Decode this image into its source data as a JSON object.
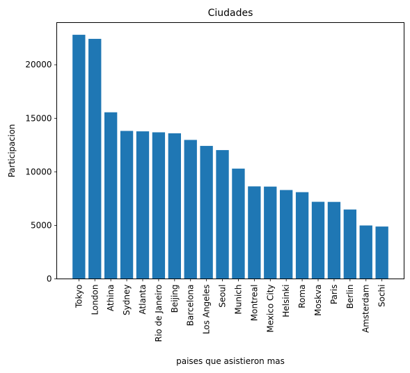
{
  "chart_data": {
    "type": "bar",
    "title": "Ciudades",
    "xlabel": "paises que asistieron mas",
    "ylabel": "Participacion",
    "categories": [
      "Tokyo",
      "London",
      "Athina",
      "Sydney",
      "Atlanta",
      "Rio de Janeiro",
      "Beijing",
      "Barcelona",
      "Los Angeles",
      "Seoul",
      "Munich",
      "Montreal",
      "Mexico City",
      "Helsinki",
      "Roma",
      "Moskva",
      "Paris",
      "Berlin",
      "Amsterdam",
      "Sochi"
    ],
    "values": [
      22800,
      22420,
      15560,
      13820,
      13780,
      13690,
      13600,
      12980,
      12420,
      12030,
      10300,
      8640,
      8620,
      8300,
      8100,
      7200,
      7190,
      6480,
      4990,
      4890
    ],
    "ylim": [
      0,
      23940
    ],
    "yticks": [
      0,
      5000,
      10000,
      15000,
      20000
    ],
    "ytick_labels": [
      "0",
      "5000",
      "10000",
      "15000",
      "20000"
    ],
    "bar_color": "#1f77b4",
    "grid": false,
    "legend": "none"
  }
}
